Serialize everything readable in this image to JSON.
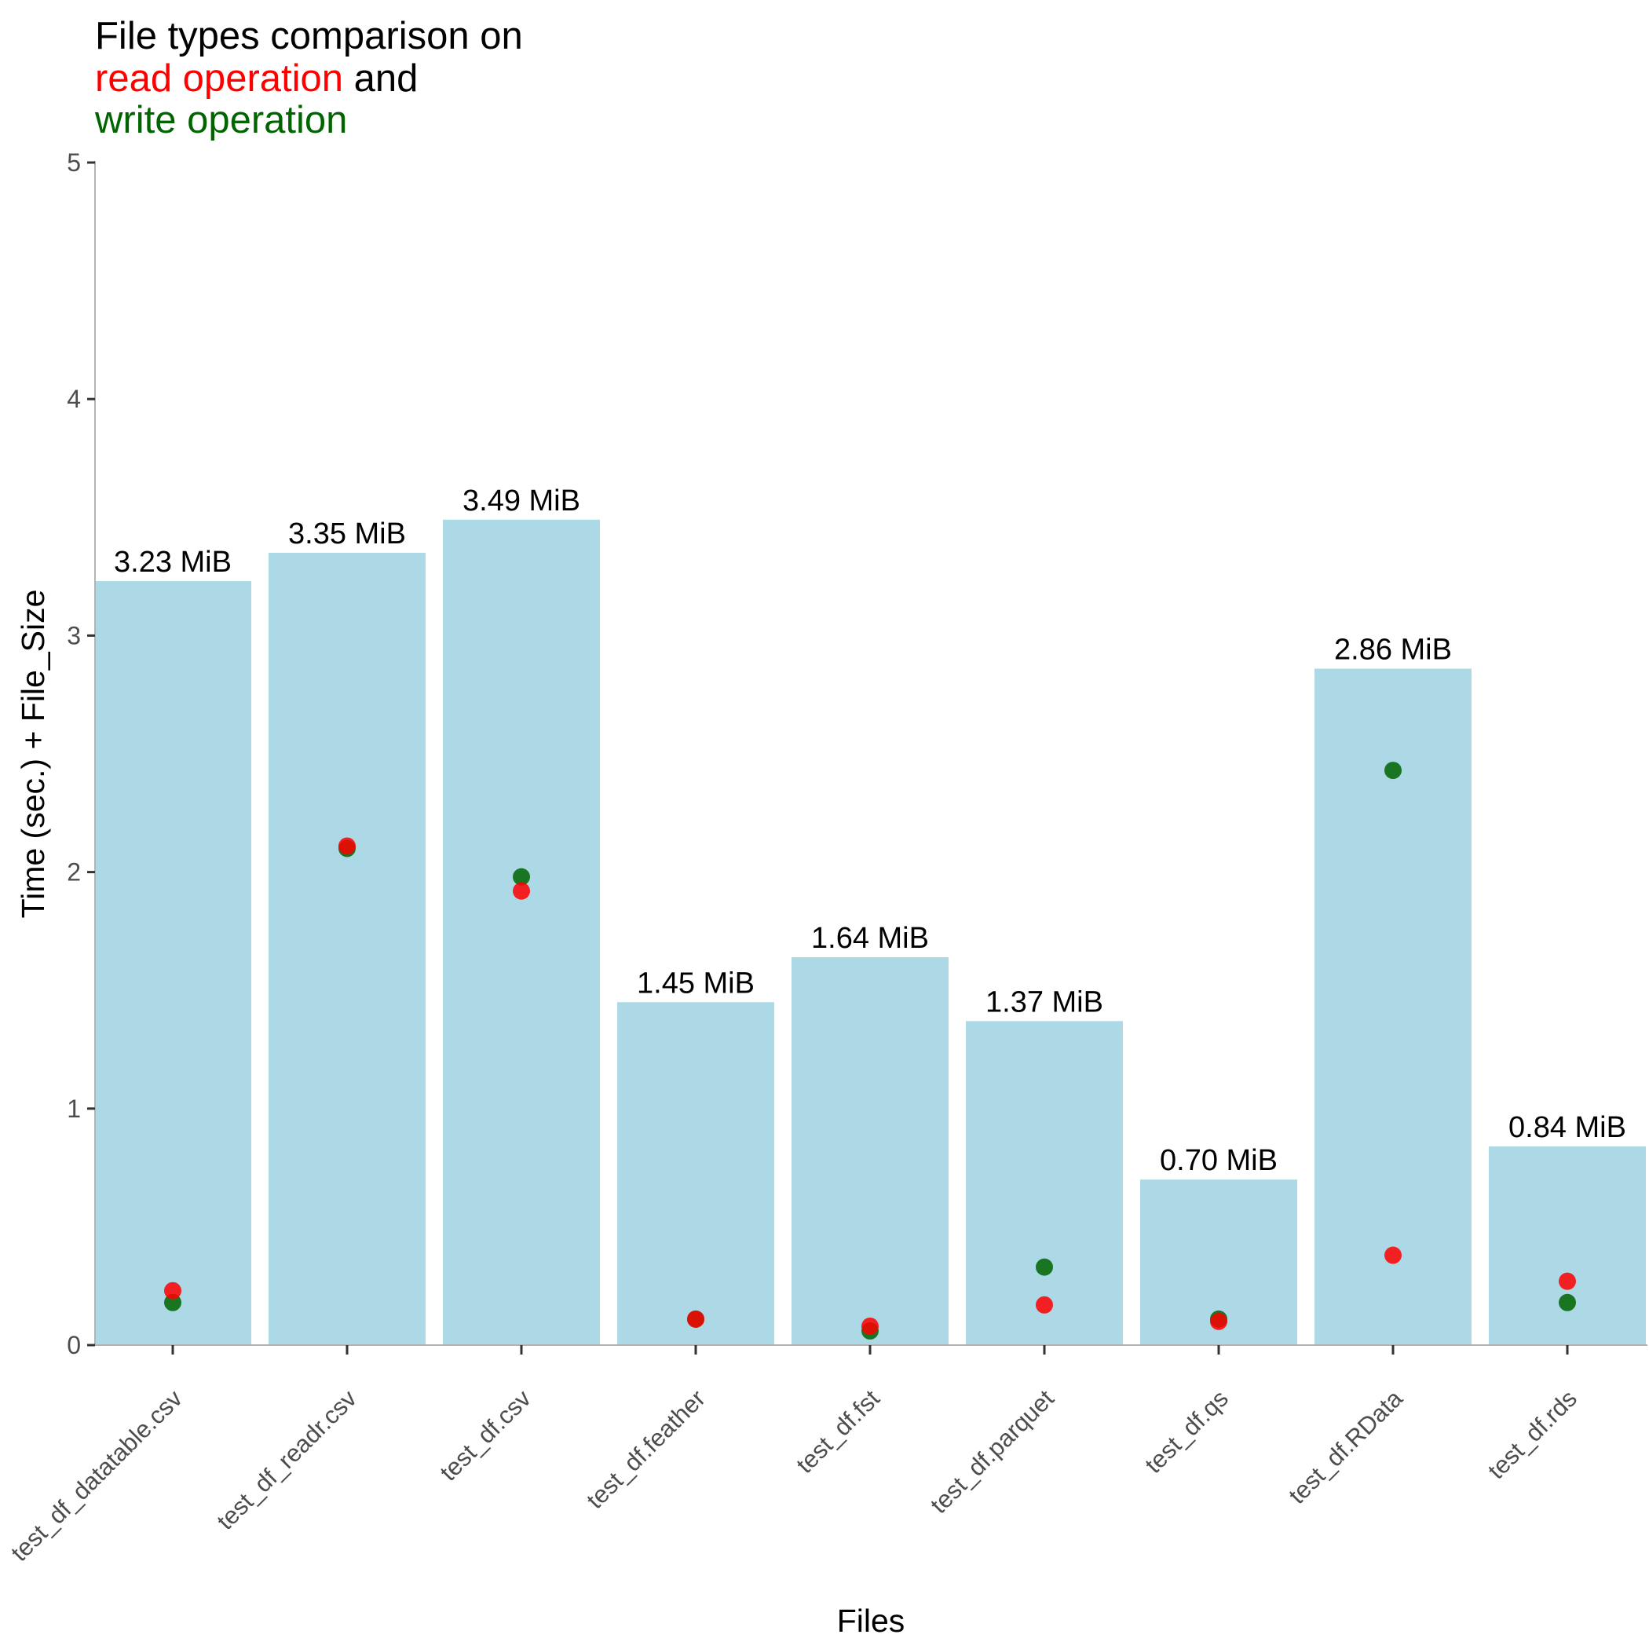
{
  "colors": {
    "bar": "#add8e6",
    "read": "#ff0000",
    "write": "#006400",
    "title": "#000000",
    "axis": "#333333"
  },
  "chart_data": {
    "type": "bar",
    "title_parts": [
      {
        "text": "File types comparison on",
        "color": "#000000"
      },
      {
        "text": "read operation",
        "color": "#ff0000",
        "suffix": " and"
      },
      {
        "text": "write operation",
        "color": "#006400"
      }
    ],
    "xlabel": "Files",
    "ylabel": "Time (sec.) + File_Size",
    "ylim": [
      0,
      5
    ],
    "yticks": [
      0,
      1,
      2,
      3,
      4,
      5
    ],
    "categories": [
      "test_df_datatable.csv",
      "test_df_readr.csv",
      "test_df.csv",
      "test_df.feather",
      "test_df.fst",
      "test_df.parquet",
      "test_df.qs",
      "test_df.RData",
      "test_df.rds"
    ],
    "file_size_mib": [
      3.23,
      3.35,
      3.49,
      1.45,
      1.64,
      1.37,
      0.7,
      2.86,
      0.84
    ],
    "bar_labels": [
      "3.23 MiB",
      "3.35 MiB",
      "3.49 MiB",
      "1.45 MiB",
      "1.64 MiB",
      "1.37 MiB",
      "0.70 MiB",
      "2.86 MiB",
      "0.84 MiB"
    ],
    "series": [
      {
        "name": "write operation",
        "values": [
          0.18,
          2.1,
          1.98,
          0.11,
          0.06,
          0.33,
          0.11,
          2.43,
          0.18
        ]
      },
      {
        "name": "read operation",
        "values": [
          0.23,
          2.11,
          1.92,
          0.11,
          0.08,
          0.17,
          0.1,
          0.38,
          0.27
        ]
      }
    ],
    "grid": false,
    "legend": "title"
  }
}
